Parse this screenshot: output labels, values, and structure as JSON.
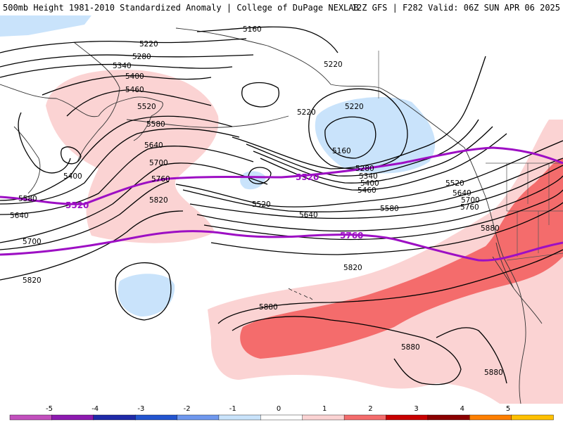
{
  "header": {
    "left": "500mb Height 1981-2010 Standardized Anomaly | College of DuPage NEXLAB",
    "right": "12Z GFS | F282 Valid: 06Z SUN APR 06 2025"
  },
  "contour_labels": {
    "c5160a": "5160",
    "c5220a": "5220",
    "c5280a": "5280",
    "c5340a": "5340",
    "c5400a": "5400",
    "c5460a": "5460",
    "c5520a": "5520",
    "c5580a": "5580",
    "c5640a": "5640",
    "c5700a": "5700",
    "c5760a": "5760",
    "c5820a": "5820",
    "c5220b": "5220",
    "c5220c": "5220",
    "c5160b": "5160",
    "c5280b": "5280",
    "c5340b": "5340",
    "c5400b": "5400",
    "c5460b": "5460",
    "c5520b": "5520",
    "c5580b": "5580",
    "c5640b": "5640",
    "c5520c": "5520",
    "c5640c": "5640",
    "c5700b": "5700",
    "c5760b": "5760",
    "c5880a": "5880",
    "c5820b": "5820",
    "c5400c": "5400",
    "c5580c": "5580",
    "c5640d": "5640",
    "c5700c": "5700",
    "c5820c": "5820",
    "c5880b": "5880",
    "c5880c": "5880",
    "c5880d": "5880"
  },
  "climatology_labels": {
    "clim5520a": "5520",
    "clim5520b": "5520",
    "clim5760": "5760"
  },
  "colors": {
    "clim_line": "#9d0fc4",
    "pos1": "#fbd3d3",
    "pos2": "#f46c6c",
    "neg1": "#c9e3fb"
  },
  "colorbar": {
    "ticks": [
      "-5",
      "-4",
      "-3",
      "-2",
      "-1",
      "0",
      "1",
      "2",
      "3",
      "4",
      "5"
    ],
    "colors": [
      "#c24fbd",
      "#8d1ab0",
      "#1f2aa8",
      "#2355cf",
      "#6f98ee",
      "#c9e3fb",
      "#ffffff",
      "#fbd3d3",
      "#f46c6c",
      "#c80000",
      "#8b0000",
      "#ff7f00",
      "#ffc000"
    ]
  }
}
